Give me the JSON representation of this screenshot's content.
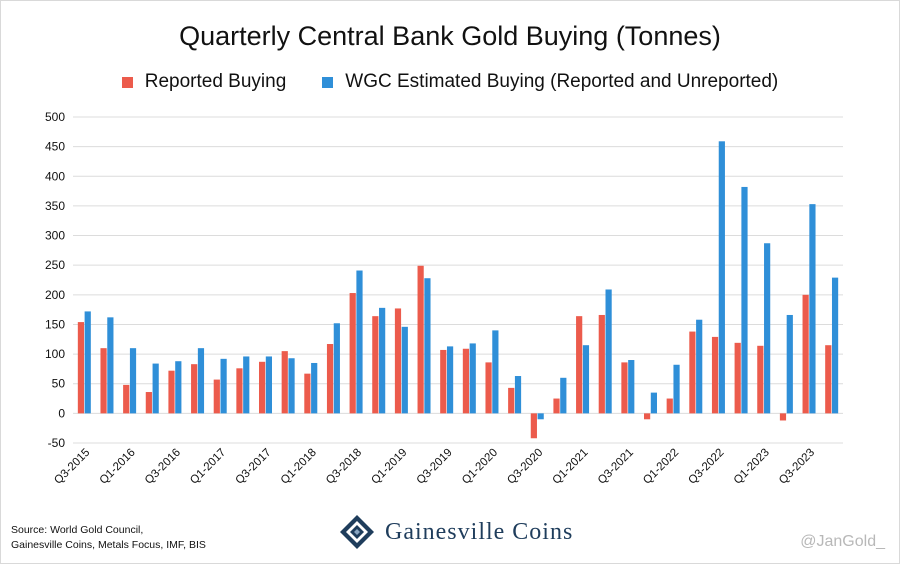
{
  "colors": {
    "reported": "#ec5b4c",
    "estimated": "#2f8fd8",
    "grid": "#dcdcdc"
  },
  "footer": {
    "source_line1": "Source: World Gold Council,",
    "source_line2": "Gainesville Coins, Metals Focus, IMF, BIS",
    "brand": "Gainesville Coins",
    "brand_icon": "gainesville-coins-logo-icon",
    "handle": "@JanGold_"
  },
  "chart_data": {
    "type": "bar",
    "title": "Quarterly Central Bank Gold Buying (Tonnes)",
    "xlabel": "",
    "ylabel": "",
    "ylim": [
      -50,
      500
    ],
    "yticks": [
      -50,
      0,
      50,
      100,
      150,
      200,
      250,
      300,
      350,
      400,
      450,
      500
    ],
    "grid": true,
    "legend_position": "top",
    "categories": [
      "Q3-2015",
      "Q4-2015",
      "Q1-2016",
      "Q2-2016",
      "Q3-2016",
      "Q4-2016",
      "Q1-2017",
      "Q2-2017",
      "Q3-2017",
      "Q4-2017",
      "Q1-2018",
      "Q2-2018",
      "Q3-2018",
      "Q4-2018",
      "Q1-2019",
      "Q2-2019",
      "Q3-2019",
      "Q4-2019",
      "Q1-2020",
      "Q2-2020",
      "Q3-2020",
      "Q4-2020",
      "Q1-2021",
      "Q2-2021",
      "Q3-2021",
      "Q4-2021",
      "Q1-2022",
      "Q2-2022",
      "Q3-2022",
      "Q4-2022",
      "Q1-2023",
      "Q2-2023",
      "Q3-2023",
      "Q4-2023"
    ],
    "tick_labels": [
      "Q3-2015",
      "",
      "Q1-2016",
      "",
      "Q3-2016",
      "",
      "Q1-2017",
      "",
      "Q3-2017",
      "",
      "Q1-2018",
      "",
      "Q3-2018",
      "",
      "Q1-2019",
      "",
      "Q3-2019",
      "",
      "Q1-2020",
      "",
      "Q3-2020",
      "",
      "Q1-2021",
      "",
      "Q3-2021",
      "",
      "Q1-2022",
      "",
      "Q3-2022",
      "",
      "Q1-2023",
      "",
      "Q3-2023",
      ""
    ],
    "series": [
      {
        "name": "Reported Buying",
        "values": [
          154,
          110,
          48,
          36,
          72,
          83,
          57,
          76,
          87,
          105,
          67,
          117,
          203,
          164,
          177,
          249,
          107,
          109,
          86,
          43,
          -42,
          25,
          164,
          166,
          86,
          -10,
          25,
          138,
          129,
          119,
          114,
          -12,
          200,
          115
        ]
      },
      {
        "name": "WGC Estimated Buying (Reported and Unreported)",
        "values": [
          172,
          162,
          110,
          84,
          88,
          110,
          92,
          96,
          96,
          93,
          85,
          152,
          241,
          178,
          146,
          228,
          113,
          118,
          140,
          63,
          -10,
          60,
          115,
          209,
          90,
          35,
          82,
          158,
          459,
          382,
          287,
          166,
          353,
          229
        ]
      }
    ]
  }
}
